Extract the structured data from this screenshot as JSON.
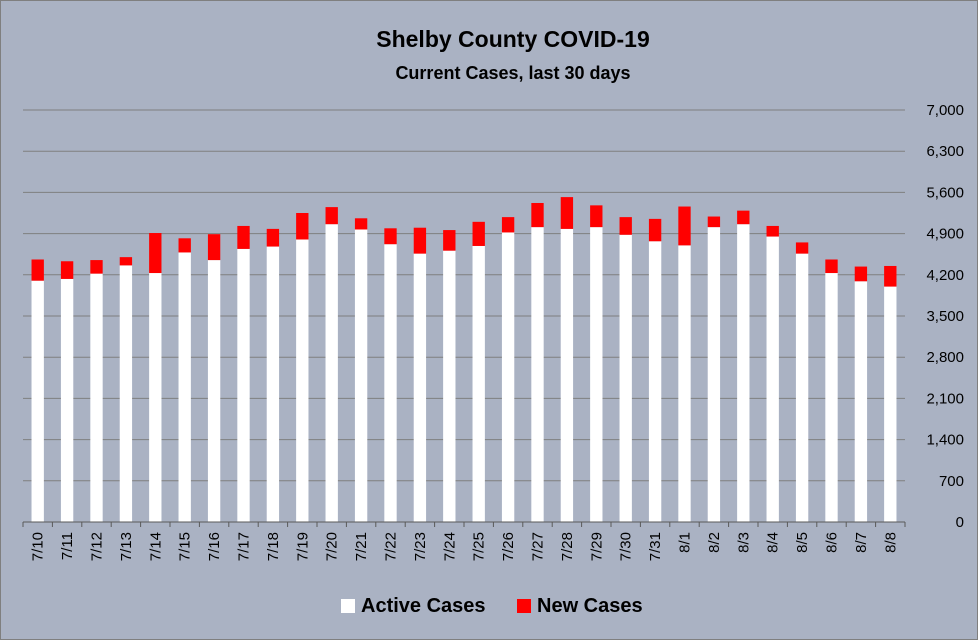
{
  "chart_data": {
    "type": "bar",
    "stacked": true,
    "title": "Shelby County COVID-19",
    "subtitle": "Current Cases, last 30 days",
    "xlabel": "",
    "ylabel": "",
    "ylim": [
      0,
      7000
    ],
    "y_ticks": [
      "0",
      "700",
      "1,400",
      "2,100",
      "2,800",
      "3,500",
      "4,200",
      "4,900",
      "5,600",
      "6,300",
      "7,000"
    ],
    "y_axis_side": "right",
    "grid": true,
    "legend_position": "bottom",
    "categories": [
      "7/10",
      "7/11",
      "7/12",
      "7/13",
      "7/14",
      "7/15",
      "7/16",
      "7/17",
      "7/18",
      "7/19",
      "7/20",
      "7/21",
      "7/22",
      "7/23",
      "7/24",
      "7/25",
      "7/26",
      "7/27",
      "7/28",
      "7/29",
      "7/30",
      "7/31",
      "8/1",
      "8/2",
      "8/3",
      "8/4",
      "8/5",
      "8/6",
      "8/7",
      "8/8"
    ],
    "series": [
      {
        "name": "Active Cases",
        "color": "#ffffff",
        "values": [
          4100,
          4130,
          4220,
          4360,
          4230,
          4580,
          4450,
          4640,
          4680,
          4800,
          5060,
          4970,
          4720,
          4560,
          4610,
          4690,
          4920,
          5010,
          4980,
          5010,
          4880,
          4770,
          4700,
          5010,
          5060,
          4850,
          4560,
          4230,
          4090,
          4000
        ]
      },
      {
        "name": "New Cases",
        "color": "#ff0000",
        "values": [
          360,
          300,
          230,
          140,
          680,
          240,
          440,
          390,
          300,
          450,
          290,
          190,
          270,
          440,
          350,
          410,
          260,
          410,
          540,
          370,
          300,
          380,
          660,
          180,
          230,
          180,
          190,
          230,
          250,
          350
        ]
      }
    ]
  }
}
